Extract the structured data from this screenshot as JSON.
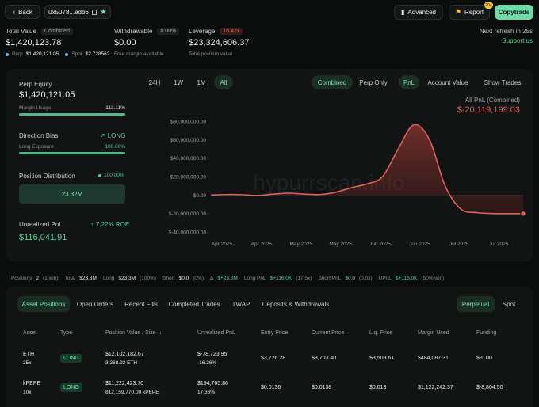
{
  "header": {
    "back_label": "Back",
    "address": "0x5078...edb6",
    "advanced_label": "Advanced",
    "report_label": "Report",
    "report_badge": "20+",
    "copytrade_label": "Copytrade",
    "refresh_text": "Next refresh in 25s",
    "support_label": "Support us"
  },
  "summary": {
    "total_value_label": "Total Value",
    "total_value_tag": "Combined",
    "total_value": "$1,420,123.78",
    "perp_label": "Perp",
    "perp_value": "$1,420,121.05",
    "spot_label": "Spot",
    "spot_value": "$2.728562",
    "withdrawable_label": "Withdrawable",
    "withdrawable_pct": "0.00%",
    "withdrawable_value": "$0.00",
    "withdrawable_sub": "Free margin available",
    "leverage_label": "Leverage",
    "leverage_tag": "16.42x",
    "leverage_value": "$23,324,606.37",
    "leverage_sub": "Total position value"
  },
  "left_panel": {
    "perp_equity_label": "Perp Equity",
    "perp_equity_value": "$1,420,121.05",
    "margin_usage_label": "Margin Usage",
    "margin_usage_value": "113.11%",
    "margin_usage_fraction": 1.0,
    "direction_bias_label": "Direction Bias",
    "direction_bias_value": "LONG",
    "long_exposure_label": "Long Exposure",
    "long_exposure_value": "100.00%",
    "long_exposure_fraction": 1.0,
    "position_distribution_label": "Position Distribution",
    "position_distribution_pct": "100.00%",
    "position_distribution_value": "23.32M",
    "unrealized_pnl_label": "Unrealized PnL",
    "unrealized_pnl_roe": "7.22% ROE",
    "unrealized_pnl_value": "$116,041.91"
  },
  "chart_controls": {
    "ranges": [
      "24H",
      "1W",
      "1M",
      "All"
    ],
    "active_range": "All",
    "modes": [
      "Combined",
      "Perp Only"
    ],
    "metrics": [
      "PnL",
      "Account Value"
    ],
    "show_trades_label": "Show Trades",
    "watermark": "hypurrscan.info"
  },
  "chart_data": {
    "type": "area",
    "title": "All PnL (Combined)",
    "current_value_label": "$-20,119,199.03",
    "y_ticks": [
      "$80,000,000.00",
      "$60,000,000.00",
      "$40,000,000.00",
      "$20,000,000.00",
      "$0.00",
      "$-20,000,000.00",
      "$-40,000,000.00"
    ],
    "x_ticks": [
      "Apr 2025",
      "Apr 2025",
      "May 2025",
      "May 2025",
      "Jun 2025",
      "Jun 2025",
      "Jul 2025",
      "Jul 2025"
    ],
    "ylim": [
      -40000000,
      80000000
    ],
    "series": [
      {
        "values": [
          0,
          500000,
          400000,
          -500000,
          1000000,
          2000000,
          1000000,
          500000,
          3000000,
          8000000,
          12000000,
          20000000,
          50000000,
          76000000,
          60000000,
          10000000,
          -15000000,
          -19000000,
          -20000000,
          -20100000,
          -20119199
        ]
      }
    ],
    "grid": false
  },
  "tabs_row": {
    "positions_label": "Positions",
    "positions_count": "2",
    "positions_win": "(1 win)",
    "total_label": "Total",
    "total_value": "$23.3M",
    "long_label": "Long",
    "long_value": "$23.3M",
    "long_pct": "(100%)",
    "short_label": "Short",
    "short_value": "$0.0",
    "short_pct": "(0%)",
    "delta_label": "Δ",
    "delta_value": "$+23.3M",
    "long_pnl_label": "Long PnL",
    "long_pnl_value": "$+116.0K",
    "long_pnl_ratio": "(17.5x)",
    "short_pnl_label": "Short PnL",
    "short_pnl_value": "$0.0",
    "short_pnl_ratio": "(0.0x)",
    "upnl_label": "UPnL",
    "upnl_value": "$+116.0K",
    "upnl_win": "(50% win)"
  },
  "nav_tabs": [
    "Asset Positions",
    "Open Orders",
    "Recent Fills",
    "Completed Trades",
    "TWAP",
    "Deposits & Withdrawals"
  ],
  "active_tab": "Asset Positions",
  "market_tabs": [
    "Perpetual",
    "Spot"
  ],
  "active_market": "Perpetual",
  "table": {
    "headers": [
      "Asset",
      "Type",
      "Position Value / Size",
      "Unrealized PnL",
      "Entry Price",
      "Current Price",
      "Liq. Price",
      "Margin Used",
      "Funding"
    ],
    "rows": [
      {
        "asset": "ETH",
        "leverage": "25x",
        "type": "LONG",
        "value": "$12,102,182.67",
        "size": "3,268.92 ETH",
        "pnl": "$-78,723.95",
        "pnl_pct": "-16.26%",
        "entry": "$3,726.28",
        "current": "$3,703.40",
        "liq": "$3,509.61",
        "margin": "$484,087.31",
        "funding": "$-0.00"
      },
      {
        "asset": "kPEPE",
        "leverage": "10x",
        "type": "LONG",
        "value": "$11,222,423.70",
        "size": "812,159,770.00 kPEPE",
        "pnl": "$194,765.86",
        "pnl_pct": "17.36%",
        "entry": "$0.0136",
        "current": "$0.0138",
        "liq": "$0.013",
        "margin": "$1,122,242.37",
        "funding": "$-8,804.50"
      }
    ]
  },
  "colors": {
    "accent": "#50d2a0",
    "negative": "#e0615a",
    "copytrade_bg": "#6fdca8"
  }
}
